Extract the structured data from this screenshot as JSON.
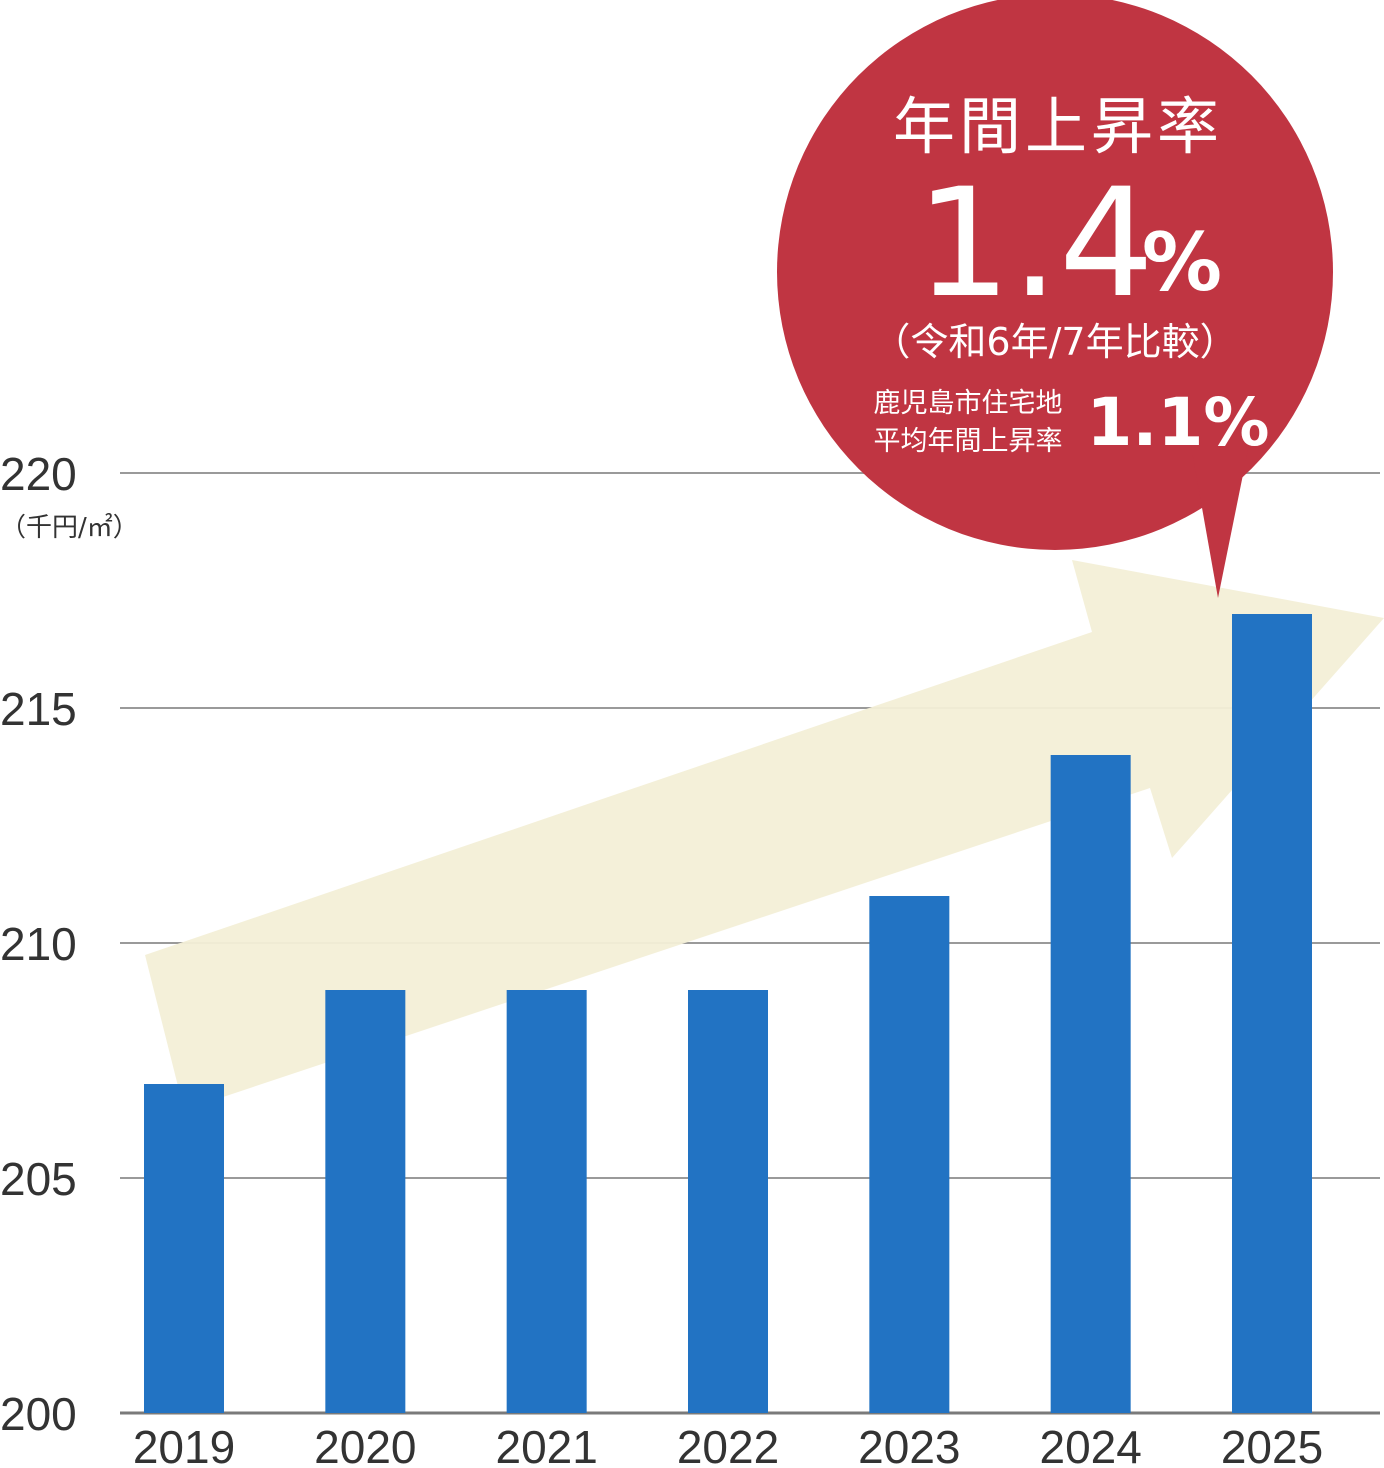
{
  "chart_data": {
    "type": "bar",
    "categories": [
      "2019",
      "2020",
      "2021",
      "2022",
      "2023",
      "2024",
      "2025"
    ],
    "values": [
      207,
      209,
      209,
      209,
      211,
      214,
      217
    ],
    "ylim": [
      200,
      220
    ],
    "yticks": [
      "200",
      "205",
      "210",
      "215",
      "220"
    ],
    "unit": "（千円/㎡）",
    "grid": true,
    "bar_color": "#2273c3",
    "arrow_color": "#f3efd7"
  },
  "callout": {
    "title": "年間上昇率",
    "rate": "1.4",
    "rate_unit": "%",
    "comparison": "（令和6年/7年比較）",
    "city_label_line1": "鹿児島市住宅地",
    "city_label_line2": "平均年間上昇率",
    "city_rate": "1.1%",
    "color": "#c03542"
  }
}
